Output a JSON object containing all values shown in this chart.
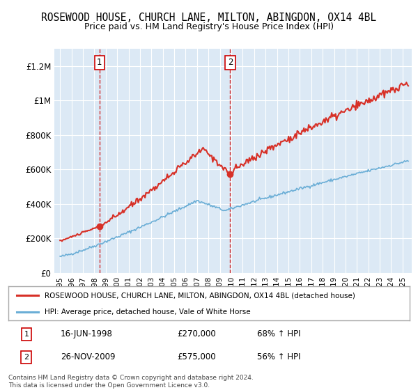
{
  "title": "ROSEWOOD HOUSE, CHURCH LANE, MILTON, ABINGDON, OX14 4BL",
  "subtitle": "Price paid vs. HM Land Registry's House Price Index (HPI)",
  "plot_bg_color": "#dce9f5",
  "ymin": 0,
  "ymax": 1300000,
  "yticks": [
    0,
    200000,
    400000,
    600000,
    800000,
    1000000,
    1200000
  ],
  "ytick_labels": [
    "£0",
    "£200K",
    "£400K",
    "£600K",
    "£800K",
    "£1M",
    "£1.2M"
  ],
  "xtick_years": [
    1995,
    1996,
    1997,
    1998,
    1999,
    2000,
    2001,
    2002,
    2003,
    2004,
    2005,
    2006,
    2007,
    2008,
    2009,
    2010,
    2011,
    2012,
    2013,
    2014,
    2015,
    2016,
    2017,
    2018,
    2019,
    2020,
    2021,
    2022,
    2023,
    2024,
    2025
  ],
  "sale1_date_x": 1998.46,
  "sale1_price": 270000,
  "sale1_label": "1",
  "sale2_date_x": 2009.9,
  "sale2_price": 575000,
  "sale2_label": "2",
  "legend_line1": "ROSEWOOD HOUSE, CHURCH LANE, MILTON, ABINGDON, OX14 4BL (detached house)",
  "legend_line2": "HPI: Average price, detached house, Vale of White Horse",
  "footer_line1": "Contains HM Land Registry data © Crown copyright and database right 2024.",
  "footer_line2": "This data is licensed under the Open Government Licence v3.0.",
  "table_row1_box": "1",
  "table_row1_date": "16-JUN-1998",
  "table_row1_price": "£270,000",
  "table_row1_hpi": "68% ↑ HPI",
  "table_row2_box": "2",
  "table_row2_date": "26-NOV-2009",
  "table_row2_price": "£575,000",
  "table_row2_hpi": "56% ↑ HPI",
  "hpi_line_color": "#6baed6",
  "price_line_color": "#d73027",
  "sale_marker_color": "#d73027"
}
